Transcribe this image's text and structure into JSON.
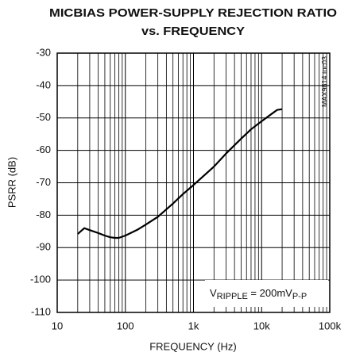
{
  "chart_data": {
    "type": "line",
    "title": [
      "MICBIAS POWER-SUPPLY REJECTION RATIO",
      "vs. FREQUENCY"
    ],
    "watermark": "MAX9814 toc03",
    "xlabel": "FREQUENCY (Hz)",
    "ylabel": "PSRR (dB)",
    "xscale": "log",
    "grid": true,
    "minor_grid": true,
    "xlim": [
      10,
      100000
    ],
    "ylim": [
      -110,
      -30
    ],
    "xticks": [
      10,
      100,
      {
        "value": 1000,
        "label": "1k"
      },
      {
        "value": 10000,
        "label": "10k"
      },
      {
        "value": 100000,
        "label": "100k"
      }
    ],
    "yticks": [
      -30,
      -40,
      -50,
      -60,
      -70,
      -80,
      -90,
      -100,
      -110
    ],
    "annotation": [
      "V",
      "RIPPLE",
      " = 200mV",
      "P-P"
    ],
    "series": [
      {
        "color": "#000000",
        "x": [
          20,
          25,
          30,
          40,
          50,
          60,
          70,
          80,
          100,
          150,
          200,
          300,
          500,
          700,
          1000,
          2000,
          3000,
          5000,
          7000,
          10000,
          15000,
          17000,
          20000
        ],
        "values": [
          -85.8,
          -84,
          -84.6,
          -85.5,
          -86.3,
          -86.8,
          -87,
          -87,
          -86.3,
          -84.5,
          -82.9,
          -80.5,
          -76.4,
          -73.5,
          -70.7,
          -65,
          -61,
          -56.4,
          -53.5,
          -51,
          -48.3,
          -47.5,
          -47.3
        ]
      }
    ]
  }
}
